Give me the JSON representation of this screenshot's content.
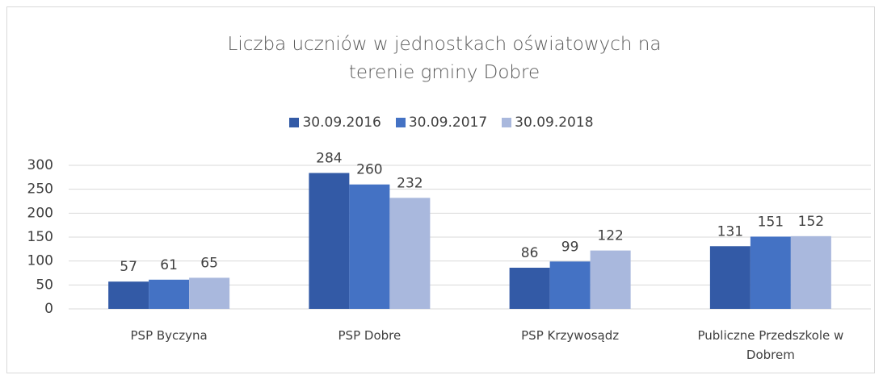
{
  "chart_data": {
    "type": "bar",
    "title": "Liczba uczniów w jednostkach oświatowych na terenie gminy Dobre",
    "categories": [
      "PSP Byczyna",
      "PSP Dobre",
      "PSP Krzywosądz",
      "Publiczne Przedszkole w Dobrem"
    ],
    "series": [
      {
        "name": "30.09.2016",
        "color": "#335aa6",
        "values": [
          57,
          284,
          86,
          131
        ]
      },
      {
        "name": "30.09.2017",
        "color": "#4472c4",
        "values": [
          61,
          260,
          99,
          151
        ]
      },
      {
        "name": "30.09.2018",
        "color": "#a9b8dd",
        "values": [
          65,
          232,
          122,
          152
        ]
      }
    ],
    "ylim": [
      0,
      300
    ],
    "yticks": [
      0,
      50,
      100,
      150,
      200,
      250,
      300
    ],
    "grid": true,
    "legend": "top"
  }
}
